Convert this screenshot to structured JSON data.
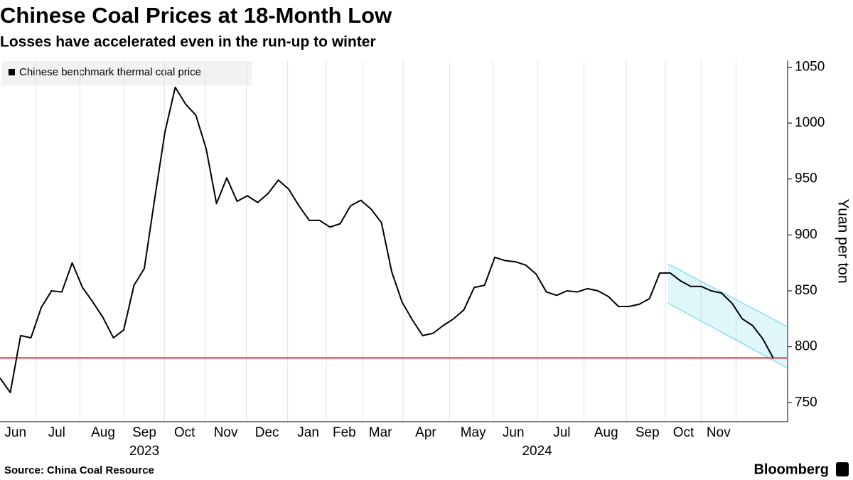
{
  "chart_data": {
    "type": "line",
    "title": "Chinese Coal Prices at 18-Month Low",
    "subtitle": "Losses have accelerated even in the run-up to winter",
    "y_axis_label": "Yuan per ton",
    "source": "Source: China Coal Resource",
    "brand": "Bloomberg",
    "series": [
      {
        "name": "Chinese benchmark thermal coal price",
        "color": "#000000",
        "values": [
          772,
          759,
          810,
          808,
          835,
          850,
          849,
          875,
          853,
          840,
          826,
          808,
          815,
          855,
          870,
          932,
          992,
          1032,
          1017,
          1007,
          977,
          928,
          951,
          930,
          935,
          929,
          937,
          949,
          941,
          926,
          913,
          913,
          907,
          910,
          926,
          931,
          923,
          911,
          867,
          840,
          824,
          810,
          812,
          819,
          825,
          833,
          853,
          855,
          880,
          877,
          876,
          873,
          865,
          849,
          846,
          850,
          849,
          852,
          850,
          845,
          836,
          836,
          838,
          843,
          866,
          866,
          859,
          854,
          854,
          850,
          848,
          839,
          825,
          819,
          807,
          790
        ]
      }
    ],
    "xlim": [
      0,
      76.4
    ],
    "xticks": [
      {
        "value": 1.5,
        "label": "Jun"
      },
      {
        "value": 5.5,
        "label": "Jul"
      },
      {
        "value": 10.0,
        "label": "Aug"
      },
      {
        "value": 14.0,
        "label": "Sep"
      },
      {
        "value": 17.9,
        "label": "Oct"
      },
      {
        "value": 21.9,
        "label": "Nov"
      },
      {
        "value": 25.9,
        "label": "Dec"
      },
      {
        "value": 29.9,
        "label": "Jan"
      },
      {
        "value": 33.4,
        "label": "Feb"
      },
      {
        "value": 36.9,
        "label": "Mar"
      },
      {
        "value": 41.3,
        "label": "Apr"
      },
      {
        "value": 45.9,
        "label": "May"
      },
      {
        "value": 49.8,
        "label": "Jun"
      },
      {
        "value": 54.5,
        "label": "Jul"
      },
      {
        "value": 58.8,
        "label": "Aug"
      },
      {
        "value": 62.8,
        "label": "Sep"
      },
      {
        "value": 66.3,
        "label": "Oct"
      },
      {
        "value": 69.7,
        "label": "Nov"
      }
    ],
    "x_group_labels": [
      {
        "value": 14.0,
        "label": "2023"
      },
      {
        "value": 52.1,
        "label": "2024"
      }
    ],
    "ylim": [
      733,
      1056
    ],
    "yticks": [
      750,
      800,
      850,
      900,
      950,
      1000,
      1050
    ],
    "reference_line": {
      "value": 790,
      "color": "#e8323c"
    },
    "channel": {
      "x": [
        64.8,
        76.4
      ],
      "upper": [
        874,
        818
      ],
      "lower": [
        839,
        781
      ],
      "color": "#5fd3e8"
    },
    "grid": true
  }
}
